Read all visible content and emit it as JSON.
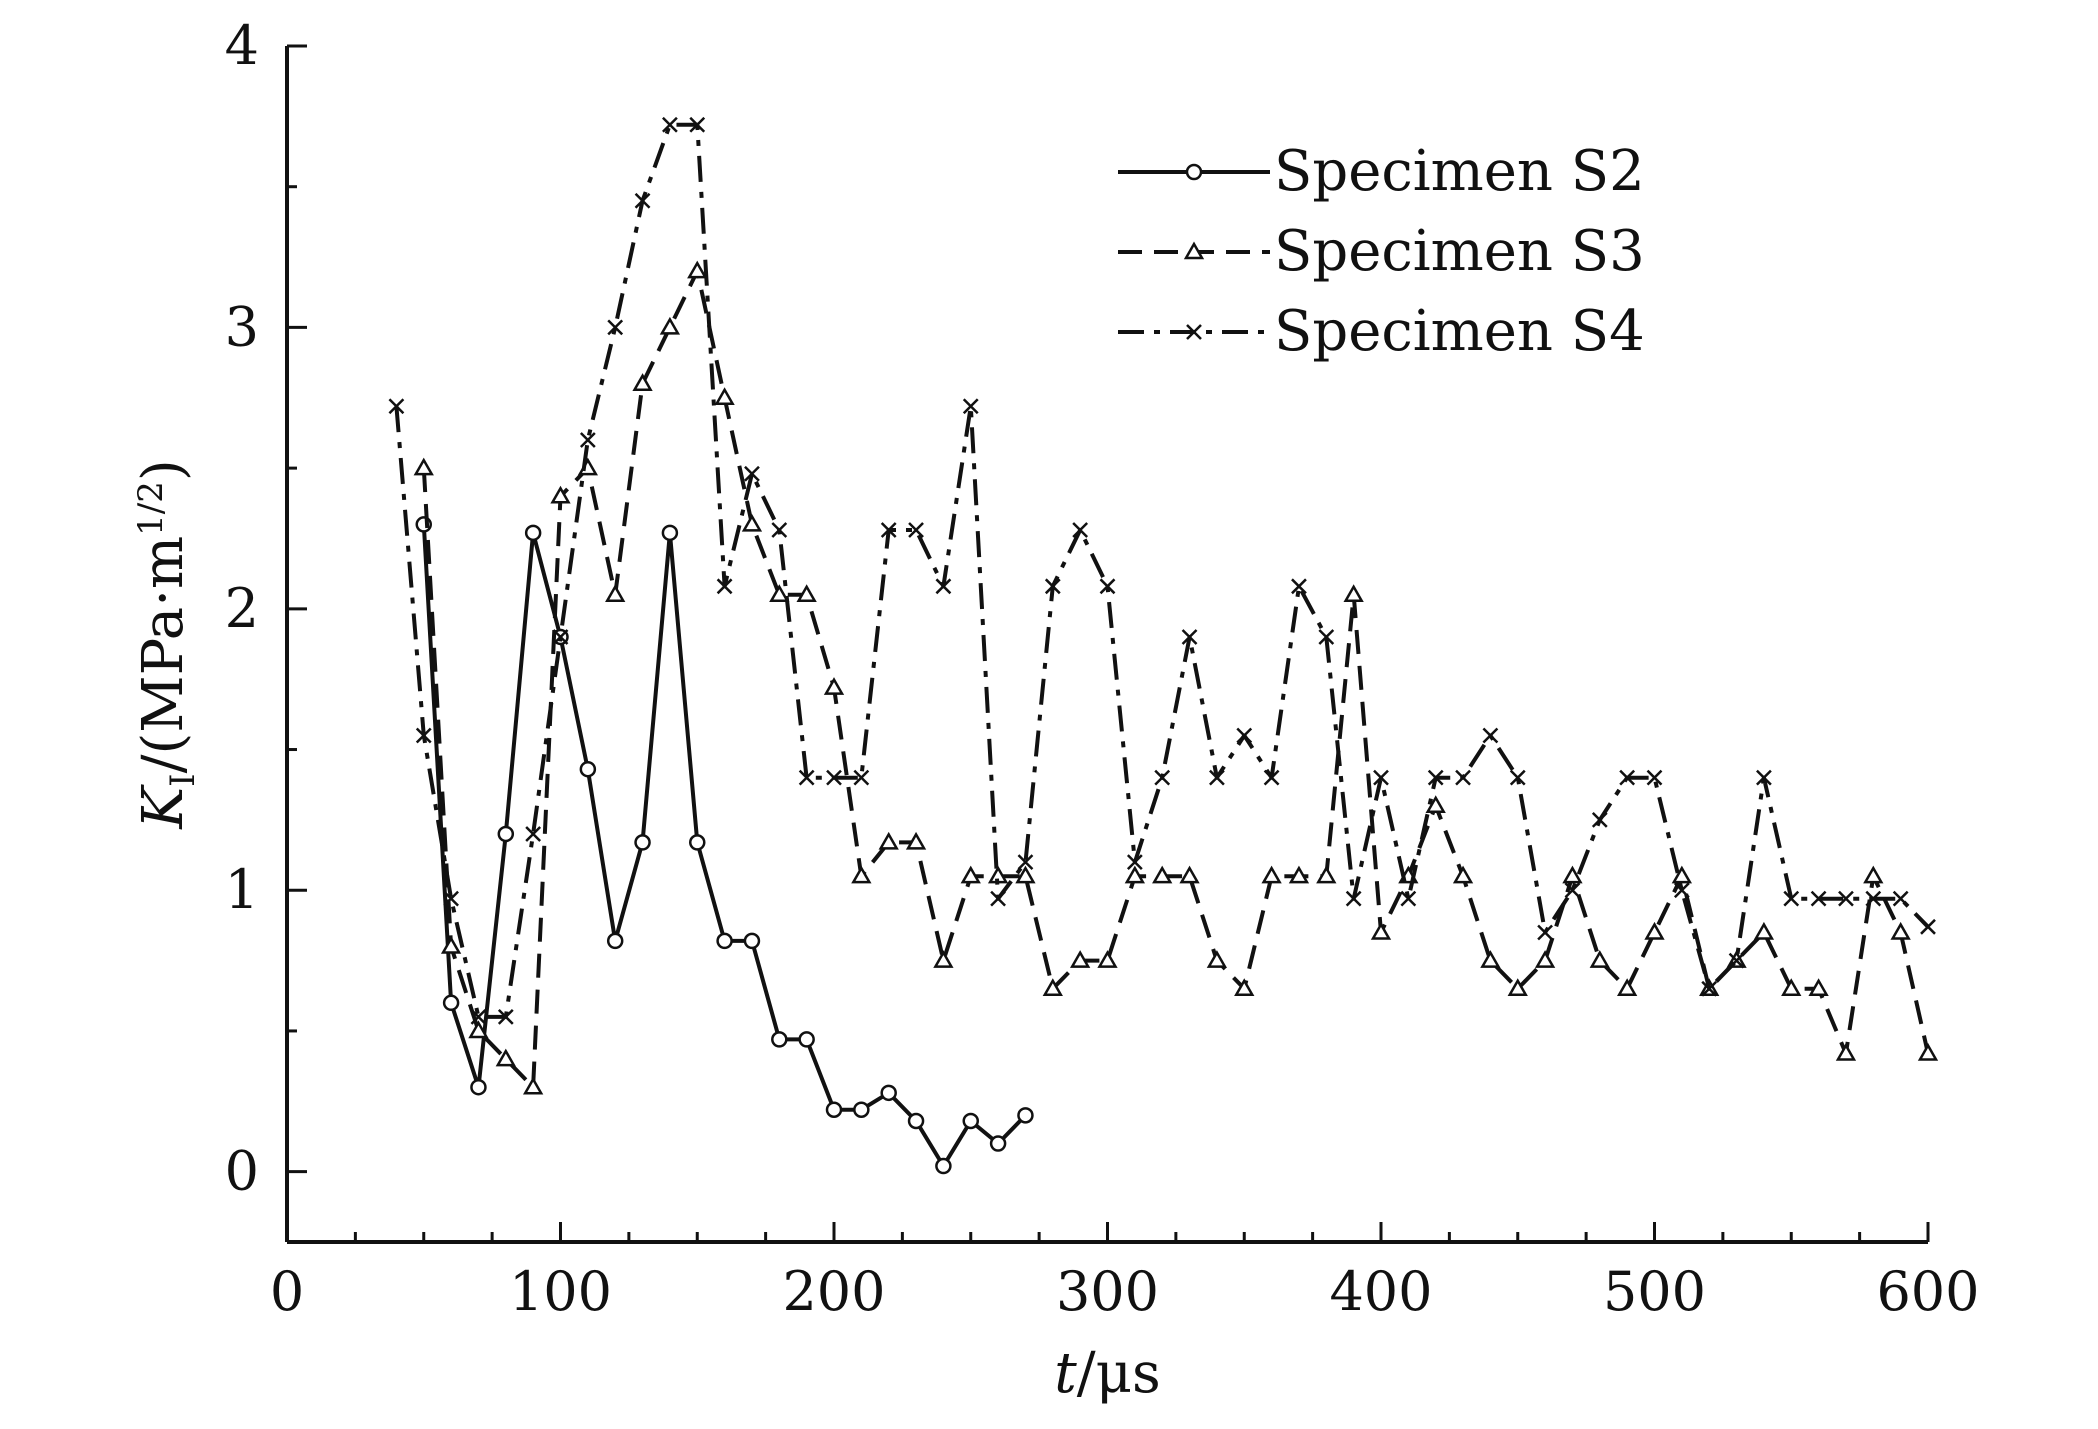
{
  "chart_data": {
    "type": "line",
    "xlabel_italic": "t",
    "xlabel_rest": "/μs",
    "ylabel_italic": "K",
    "ylabel_sub": "I",
    "ylabel_rest": "/(MPa·m",
    "ylabel_sup": "1/2",
    "ylabel_close": ")",
    "xlim": [
      0,
      600
    ],
    "ylim": [
      -0.25,
      4
    ],
    "x_ticks": [
      0,
      100,
      200,
      300,
      400,
      500,
      600
    ],
    "x_tick_labels": [
      "0",
      "100",
      "200",
      "300",
      "400",
      "500",
      "600"
    ],
    "y_ticks": [
      0,
      1,
      2,
      3,
      4
    ],
    "y_tick_labels": [
      "0",
      "1",
      "2",
      "3",
      "4"
    ],
    "grid": false,
    "legend_position": "top-right",
    "series": [
      {
        "name": "Specimen S2",
        "line_style": "solid",
        "marker": "circle",
        "x": [
          50,
          60,
          70,
          80,
          90,
          100,
          110,
          120,
          130,
          140,
          150,
          160,
          170,
          180,
          190,
          200,
          210,
          220,
          230,
          240,
          250,
          260,
          270
        ],
        "y": [
          2.3,
          0.6,
          0.3,
          1.2,
          2.27,
          1.9,
          1.43,
          0.82,
          1.17,
          2.27,
          1.17,
          0.82,
          0.82,
          0.47,
          0.47,
          0.22,
          0.22,
          0.28,
          0.18,
          0.02,
          0.18,
          0.1,
          0.2
        ]
      },
      {
        "name": "Specimen S3",
        "line_style": "dashed",
        "marker": "triangle",
        "x": [
          50,
          60,
          70,
          80,
          90,
          100,
          110,
          120,
          130,
          140,
          150,
          160,
          170,
          180,
          190,
          200,
          210,
          220,
          230,
          240,
          250,
          260,
          270,
          280,
          290,
          300,
          310,
          320,
          330,
          340,
          350,
          360,
          370,
          380,
          390,
          400,
          410,
          420,
          430,
          440,
          450,
          460,
          470,
          480,
          490,
          500,
          510,
          520,
          530,
          540,
          550,
          560,
          570,
          580,
          590,
          600
        ],
        "y": [
          2.5,
          0.8,
          0.5,
          0.4,
          0.3,
          2.4,
          2.5,
          2.05,
          2.8,
          3.0,
          3.2,
          2.75,
          2.3,
          2.05,
          2.05,
          1.72,
          1.05,
          1.17,
          1.17,
          0.75,
          1.05,
          1.05,
          1.05,
          0.65,
          0.75,
          0.75,
          1.05,
          1.05,
          1.05,
          0.75,
          0.65,
          1.05,
          1.05,
          1.05,
          2.05,
          0.85,
          1.05,
          1.3,
          1.05,
          0.75,
          0.65,
          0.75,
          1.05,
          0.75,
          0.65,
          0.85,
          1.05,
          0.65,
          0.75,
          0.85,
          0.65,
          0.65,
          0.42,
          1.05,
          0.85,
          0.42
        ]
      },
      {
        "name": "Specimen S4",
        "line_style": "dash-dot",
        "marker": "x",
        "x": [
          40,
          50,
          60,
          70,
          80,
          90,
          100,
          110,
          120,
          130,
          140,
          150,
          160,
          170,
          180,
          190,
          200,
          210,
          220,
          230,
          240,
          250,
          260,
          270,
          280,
          290,
          300,
          310,
          320,
          330,
          340,
          350,
          360,
          370,
          380,
          390,
          400,
          410,
          420,
          430,
          440,
          450,
          460,
          470,
          480,
          490,
          500,
          510,
          520,
          530,
          540,
          550,
          560,
          570,
          580,
          590,
          600
        ],
        "y": [
          2.72,
          1.55,
          0.97,
          0.55,
          0.55,
          1.2,
          1.9,
          2.6,
          3.0,
          3.45,
          3.72,
          3.72,
          2.08,
          2.48,
          2.28,
          1.4,
          1.4,
          1.4,
          2.28,
          2.28,
          2.08,
          2.72,
          0.97,
          1.1,
          2.08,
          2.28,
          2.08,
          1.1,
          1.4,
          1.9,
          1.4,
          1.55,
          1.4,
          2.08,
          1.9,
          0.97,
          1.4,
          0.97,
          1.4,
          1.4,
          1.55,
          1.4,
          0.85,
          1.0,
          1.25,
          1.4,
          1.4,
          1.0,
          0.65,
          0.75,
          1.4,
          0.97,
          0.97,
          0.97,
          0.97,
          0.97,
          0.87
        ]
      }
    ]
  }
}
